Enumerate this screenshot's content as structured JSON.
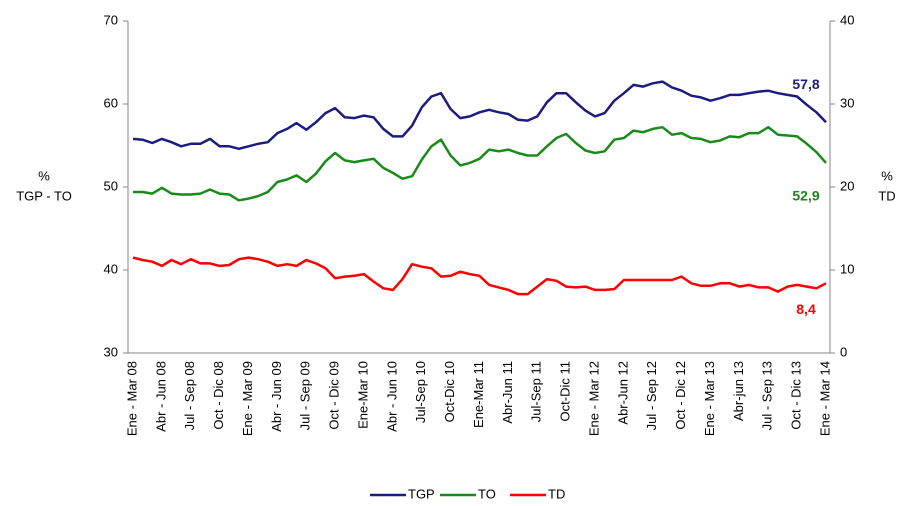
{
  "chart_data": {
    "type": "line",
    "ylabel": [
      "%",
      "TGP  - TO"
    ],
    "y2label": [
      "%",
      "TD"
    ],
    "categories": [
      "Ene - Mar 08",
      null,
      null,
      "Abr - Jun 08",
      null,
      null,
      "Jul - Sep 08",
      null,
      null,
      "Oct - Dic 08",
      null,
      null,
      "Ene - Mar 09",
      null,
      null,
      "Abr - Jun 09",
      null,
      null,
      "Jul - Sep 09",
      null,
      null,
      "Oct - Dic 09",
      null,
      null,
      "Ene-Mar 10",
      null,
      null,
      "Abr - Jun 10",
      null,
      null,
      "Jul-Sep 10",
      null,
      null,
      "Oct-Dic 10",
      null,
      null,
      "Ene-Mar 11",
      null,
      null,
      "Abr-Jun 11",
      null,
      null,
      "Jul-Sep 11",
      null,
      null,
      "Oct-Dic 11",
      null,
      null,
      "Ene - Mar 12",
      null,
      null,
      "Abr-Jun 12",
      null,
      null,
      "Jul - Sep 12",
      null,
      null,
      "Oct - Dic 12",
      null,
      null,
      "Ene - Mar 13",
      null,
      null,
      "Abr-jun 13",
      null,
      null,
      "Jul - Sep 13",
      null,
      null,
      "Oct - Dic 13",
      null,
      null,
      "Ene - Mar 14"
    ],
    "ylim": [
      30,
      70
    ],
    "yticks": [
      30,
      40,
      50,
      60,
      70
    ],
    "y2lim": [
      0,
      40
    ],
    "y2ticks": [
      0,
      10,
      20,
      30,
      40
    ],
    "legend": "bottom",
    "series": [
      {
        "name": "TGP",
        "color": "#1c1c80",
        "values": [
          55.8,
          55.7,
          55.3,
          55.8,
          55.4,
          54.9,
          55.2,
          55.2,
          55.8,
          54.9,
          54.9,
          54.6,
          54.9,
          55.2,
          55.4,
          56.5,
          57.0,
          57.7,
          56.9,
          57.8,
          58.9,
          59.5,
          58.4,
          58.3,
          58.6,
          58.4,
          57.0,
          56.1,
          56.1,
          57.4,
          59.6,
          60.9,
          61.3,
          59.4,
          58.3,
          58.5,
          59.0,
          59.3,
          59.0,
          58.8,
          58.1,
          58.0,
          58.5,
          60.2,
          61.3,
          61.3,
          60.2,
          59.2,
          58.5,
          58.9,
          60.4,
          61.3,
          62.3,
          62.1,
          62.5,
          62.7,
          62.0,
          61.6,
          61.0,
          60.8,
          60.4,
          60.7,
          61.1,
          61.1,
          61.3,
          61.5,
          61.6,
          61.3,
          61.1,
          60.9,
          59.9,
          59.0,
          57.8
        ],
        "value_labels": [
          null,
          null,
          null,
          null,
          null,
          null,
          null,
          null,
          null,
          null,
          null,
          null,
          null,
          null,
          null,
          null,
          null,
          null,
          null,
          null,
          null,
          null,
          null,
          null,
          null,
          null,
          null,
          null,
          null,
          null,
          null,
          null,
          null,
          null,
          null,
          null,
          null,
          null,
          null,
          null,
          null,
          null,
          null,
          null,
          null,
          null,
          null,
          null,
          null,
          null,
          null,
          null,
          null,
          null,
          null,
          null,
          null,
          null,
          null,
          null,
          null,
          null,
          null,
          null,
          null,
          null,
          null,
          null,
          null,
          null,
          null,
          null,
          "57,8"
        ]
      },
      {
        "name": "TO",
        "color": "#1a8a1a",
        "values": [
          49.4,
          49.4,
          49.2,
          49.9,
          49.2,
          49.1,
          49.1,
          49.2,
          49.7,
          49.2,
          49.1,
          48.4,
          48.6,
          48.9,
          49.4,
          50.6,
          50.9,
          51.4,
          50.6,
          51.6,
          53.1,
          54.1,
          53.2,
          53.0,
          53.2,
          53.4,
          52.3,
          51.7,
          51.0,
          51.3,
          53.3,
          54.9,
          55.7,
          53.8,
          52.6,
          52.9,
          53.4,
          54.5,
          54.3,
          54.5,
          54.1,
          53.8,
          53.8,
          54.9,
          55.9,
          56.4,
          55.3,
          54.4,
          54.1,
          54.3,
          55.7,
          55.9,
          56.8,
          56.6,
          57.0,
          57.2,
          56.3,
          56.5,
          55.9,
          55.8,
          55.4,
          55.6,
          56.1,
          56.0,
          56.5,
          56.5,
          57.2,
          56.3,
          56.2,
          56.1,
          55.2,
          54.2,
          52.9
        ],
        "value_labels": [
          null,
          null,
          null,
          null,
          null,
          null,
          null,
          null,
          null,
          null,
          null,
          null,
          null,
          null,
          null,
          null,
          null,
          null,
          null,
          null,
          null,
          null,
          null,
          null,
          null,
          null,
          null,
          null,
          null,
          null,
          null,
          null,
          null,
          null,
          null,
          null,
          null,
          null,
          null,
          null,
          null,
          null,
          null,
          null,
          null,
          null,
          null,
          null,
          null,
          null,
          null,
          null,
          null,
          null,
          null,
          null,
          null,
          null,
          null,
          null,
          null,
          null,
          null,
          null,
          null,
          null,
          null,
          null,
          null,
          null,
          null,
          null,
          "52,9"
        ]
      },
      {
        "name": "TD",
        "color": "#ff0000",
        "axis": "y2",
        "values": [
          11.5,
          11.2,
          11.0,
          10.5,
          11.2,
          10.7,
          11.3,
          10.8,
          10.8,
          10.5,
          10.6,
          11.3,
          11.5,
          11.3,
          11.0,
          10.5,
          10.7,
          10.5,
          11.2,
          10.8,
          10.2,
          9.0,
          9.2,
          9.3,
          9.5,
          8.6,
          7.8,
          7.6,
          8.9,
          10.7,
          10.4,
          10.2,
          9.2,
          9.3,
          9.8,
          9.5,
          9.3,
          8.2,
          7.9,
          7.6,
          7.1,
          7.1,
          8.0,
          8.9,
          8.7,
          8.0,
          7.9,
          8.0,
          7.6,
          7.6,
          7.7,
          8.8,
          8.8,
          8.8,
          8.8,
          8.8,
          8.8,
          9.2,
          8.4,
          8.1,
          8.1,
          8.4,
          8.4,
          8.0,
          8.2,
          7.9,
          7.9,
          7.4,
          8.0,
          8.2,
          8.0,
          7.8,
          8.4
        ],
        "value_labels": [
          null,
          null,
          null,
          null,
          null,
          null,
          null,
          null,
          null,
          null,
          null,
          null,
          null,
          null,
          null,
          null,
          null,
          null,
          null,
          null,
          null,
          null,
          null,
          null,
          null,
          null,
          null,
          null,
          null,
          null,
          null,
          null,
          null,
          null,
          null,
          null,
          null,
          null,
          null,
          null,
          null,
          null,
          null,
          null,
          null,
          null,
          null,
          null,
          null,
          null,
          null,
          null,
          null,
          null,
          null,
          null,
          null,
          null,
          null,
          null,
          null,
          null,
          null,
          null,
          null,
          null,
          null,
          null,
          null,
          null,
          null,
          null,
          "8,4"
        ]
      }
    ]
  }
}
